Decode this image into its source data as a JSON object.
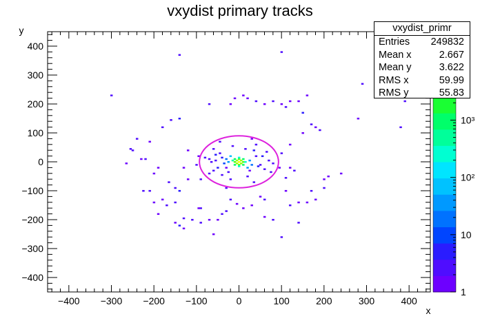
{
  "chart_data": {
    "type": "heatmap",
    "title": "vxydist primary tracks",
    "xlabel": "x",
    "ylabel": "y",
    "xlim": [
      -450,
      450
    ],
    "ylim": [
      -450,
      450
    ],
    "x_ticks": [
      -400,
      -300,
      -200,
      -100,
      0,
      100,
      200,
      300,
      400
    ],
    "y_ticks": [
      -400,
      -300,
      -200,
      -100,
      0,
      100,
      200,
      300,
      400
    ],
    "z_scale": "log",
    "z_ticks": [
      {
        "value": 1,
        "label": "1"
      },
      {
        "value": 10,
        "label": "10"
      },
      {
        "value": 100,
        "label": "10²"
      },
      {
        "value": 1000,
        "label": "10³"
      }
    ],
    "circle_overlay": {
      "x0": 0,
      "y0": 0,
      "rx": 93,
      "ry": 90,
      "color": "#dd22dd"
    },
    "stats": {
      "name": "vxydist_primr",
      "rows": [
        {
          "label": "Entries",
          "value": "249832"
        },
        {
          "label": "Mean x",
          "value": "2.667"
        },
        {
          "label": "Mean y",
          "value": "3.622"
        },
        {
          "label": "RMS x",
          "value": "59.99"
        },
        {
          "label": "RMS y",
          "value": "55.83"
        }
      ]
    },
    "cells": [
      [
        0,
        0,
        30000
      ],
      [
        -5,
        5,
        8000
      ],
      [
        5,
        -5,
        8000
      ],
      [
        -5,
        -5,
        6000
      ],
      [
        5,
        5,
        5000
      ],
      [
        0,
        10,
        4000
      ],
      [
        0,
        -10,
        3500
      ],
      [
        10,
        0,
        3000
      ],
      [
        -10,
        0,
        3000
      ],
      [
        10,
        10,
        1000
      ],
      [
        -10,
        10,
        800
      ],
      [
        -10,
        -10,
        900
      ],
      [
        10,
        -10,
        700
      ],
      [
        -15,
        5,
        400
      ],
      [
        15,
        0,
        350
      ],
      [
        0,
        15,
        300
      ],
      [
        0,
        -15,
        250
      ],
      [
        -20,
        20,
        60
      ],
      [
        20,
        -20,
        50
      ],
      [
        -25,
        0,
        40
      ],
      [
        25,
        5,
        30
      ],
      [
        -30,
        10,
        20
      ],
      [
        30,
        -10,
        15
      ],
      [
        -35,
        -5,
        10
      ],
      [
        -40,
        15,
        6
      ],
      [
        45,
        -15,
        5
      ],
      [
        -50,
        -20,
        5
      ],
      [
        -55,
        25,
        4
      ],
      [
        55,
        20,
        4
      ],
      [
        -60,
        -30,
        3
      ],
      [
        60,
        -25,
        3
      ],
      [
        -65,
        0,
        3
      ],
      [
        70,
        5,
        2
      ],
      [
        35,
        40,
        4
      ],
      [
        -40,
        -45,
        3
      ],
      [
        20,
        -50,
        3
      ],
      [
        -15,
        55,
        2
      ],
      [
        40,
        60,
        2
      ],
      [
        -60,
        45,
        2
      ],
      [
        -70,
        -40,
        2
      ],
      [
        75,
        -35,
        2
      ],
      [
        -80,
        15,
        2
      ],
      [
        80,
        -5,
        2
      ],
      [
        -45,
        70,
        2
      ],
      [
        35,
        -70,
        2
      ],
      [
        100,
        30,
        2
      ],
      [
        -100,
        -10,
        2
      ],
      [
        -90,
        -60,
        2
      ],
      [
        120,
        -20,
        1
      ],
      [
        110,
        -55,
        2
      ],
      [
        -120,
        40,
        1
      ],
      [
        -150,
        -90,
        2
      ],
      [
        -170,
        -150,
        3
      ],
      [
        -150,
        -140,
        2
      ],
      [
        -180,
        -130,
        1
      ],
      [
        -190,
        -20,
        1
      ],
      [
        -225,
        -100,
        3
      ],
      [
        -210,
        -100,
        2
      ],
      [
        -140,
        -100,
        6
      ],
      [
        -165,
        -70,
        2
      ],
      [
        -140,
        150,
        4
      ],
      [
        -180,
        120,
        3
      ],
      [
        -160,
        145,
        2
      ],
      [
        -200,
        -40,
        1
      ],
      [
        -140,
        -220,
        4
      ],
      [
        -130,
        -195,
        2
      ],
      [
        -90,
        -160,
        3
      ],
      [
        -110,
        -200,
        2
      ],
      [
        -150,
        -210,
        1
      ],
      [
        -70,
        -200,
        1
      ],
      [
        -50,
        -200,
        1
      ],
      [
        -40,
        -180,
        2
      ],
      [
        -30,
        -170,
        2
      ],
      [
        -255,
        45,
        3
      ],
      [
        -265,
        -5,
        1
      ],
      [
        -220,
        10,
        2
      ],
      [
        -210,
        70,
        1
      ],
      [
        -240,
        80,
        2
      ],
      [
        -20,
        -130,
        2
      ],
      [
        -5,
        -145,
        1
      ],
      [
        10,
        -160,
        1
      ],
      [
        30,
        -150,
        1
      ],
      [
        60,
        -190,
        1
      ],
      [
        80,
        -200,
        2
      ],
      [
        50,
        -120,
        1
      ],
      [
        120,
        -150,
        2
      ],
      [
        140,
        -140,
        1
      ],
      [
        160,
        -140,
        1
      ],
      [
        180,
        -130,
        1
      ],
      [
        200,
        -90,
        3
      ],
      [
        210,
        -50,
        1
      ],
      [
        200,
        -60,
        1
      ],
      [
        140,
        -210,
        2
      ],
      [
        100,
        -260,
        2
      ],
      [
        170,
        -100,
        2
      ],
      [
        110,
        -100,
        1
      ],
      [
        240,
        -40,
        1
      ],
      [
        150,
        100,
        1
      ],
      [
        170,
        130,
        2
      ],
      [
        190,
        110,
        2
      ],
      [
        150,
        170,
        5
      ],
      [
        180,
        120,
        1
      ],
      [
        110,
        190,
        3
      ],
      [
        100,
        200,
        1
      ],
      [
        80,
        210,
        2
      ],
      [
        60,
        200,
        1
      ],
      [
        40,
        210,
        2
      ],
      [
        20,
        220,
        1
      ],
      [
        -20,
        200,
        1
      ],
      [
        -70,
        200,
        2
      ],
      [
        10,
        230,
        1
      ],
      [
        -10,
        220,
        1
      ],
      [
        120,
        210,
        1
      ],
      [
        140,
        210,
        1
      ],
      [
        160,
        230,
        1
      ],
      [
        100,
        380,
        2
      ],
      [
        -140,
        370,
        2
      ],
      [
        -300,
        230,
        2
      ],
      [
        290,
        270,
        2
      ],
      [
        390,
        210,
        2
      ],
      [
        380,
        120,
        2
      ],
      [
        280,
        150,
        1
      ],
      [
        -250,
        40,
        2
      ],
      [
        -230,
        10,
        1
      ],
      [
        -60,
        -250,
        1
      ],
      [
        -90,
        -210,
        2
      ],
      [
        -200,
        -140,
        1
      ],
      [
        -190,
        -180,
        1
      ],
      [
        -95,
        -160,
        1
      ],
      [
        -130,
        -230,
        1
      ],
      [
        -30,
        -20,
        1
      ],
      [
        25,
        -30,
        1
      ],
      [
        -25,
        -35,
        2
      ],
      [
        40,
        20,
        2
      ],
      [
        -45,
        30,
        2
      ],
      [
        50,
        -10,
        3
      ],
      [
        -55,
        5,
        2
      ],
      [
        15,
        45,
        2
      ],
      [
        -20,
        -60,
        2
      ],
      [
        65,
        35,
        2
      ],
      [
        -70,
        10,
        2
      ],
      [
        30,
        80,
        1
      ],
      [
        -30,
        -90,
        2
      ],
      [
        95,
        -20,
        1
      ],
      [
        -95,
        20,
        1
      ],
      [
        120,
        60,
        1
      ],
      [
        130,
        -30,
        2
      ],
      [
        -130,
        -20,
        1
      ],
      [
        -120,
        -60,
        1
      ],
      [
        60,
        -130,
        2
      ]
    ]
  }
}
